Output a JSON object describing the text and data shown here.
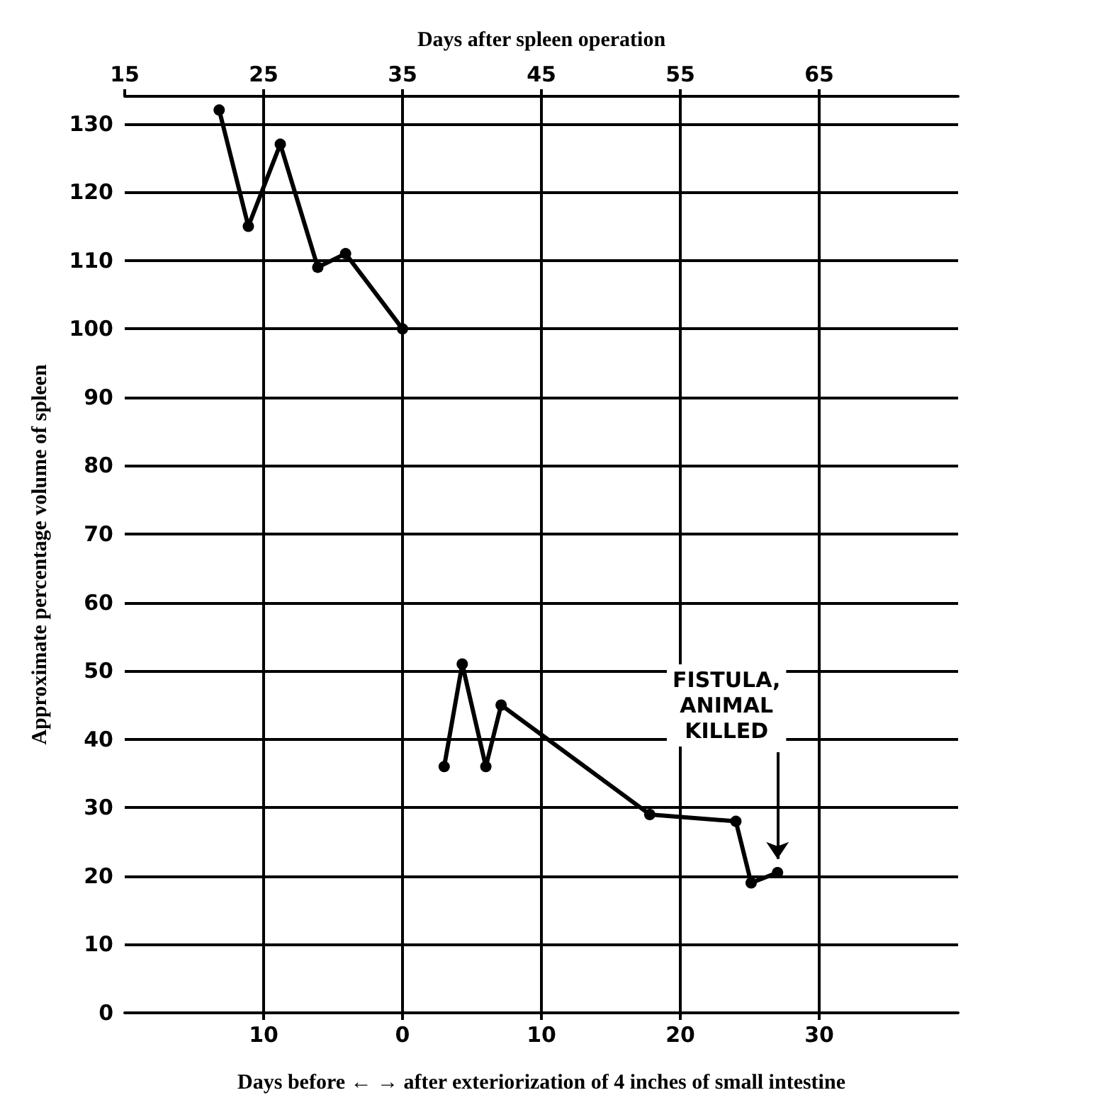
{
  "chart_data": {
    "type": "line",
    "xlabel": "Days before ← → after exteriorization of 4 inches of small intestine",
    "x2label": "Days after spleen operation",
    "ylabel": "Approximate percentage volume of spleen",
    "series": [
      {
        "color": "#000000",
        "x": [
          -13.2,
          -11.1,
          -8.8,
          -6.1,
          -4.1,
          0
        ],
        "values": [
          132,
          115,
          127,
          109,
          111,
          100
        ]
      },
      {
        "color": "#000000",
        "x": [
          3.0,
          4.3,
          6.0,
          7.1,
          17.8,
          24.0,
          25.1,
          27.0
        ],
        "values": [
          36,
          51,
          36,
          45,
          29,
          28,
          19,
          20.5
        ]
      }
    ],
    "annotations": [
      "FISTULA,\nANIMAL\nKILLED"
    ],
    "xlim": [
      -20,
      40
    ],
    "xticks": [
      {
        "value": -10,
        "label": "10"
      },
      0,
      10,
      20,
      30
    ],
    "x2lim": [
      15,
      75
    ],
    "x2ticks": [
      15,
      25,
      35,
      45,
      55,
      65
    ],
    "ylim": [
      0,
      134
    ],
    "yticks": [
      0,
      10,
      20,
      30,
      40,
      50,
      60,
      70,
      80,
      90,
      100,
      110,
      120,
      130
    ],
    "grid": true,
    "marker": "circle",
    "line_style": "solid"
  }
}
